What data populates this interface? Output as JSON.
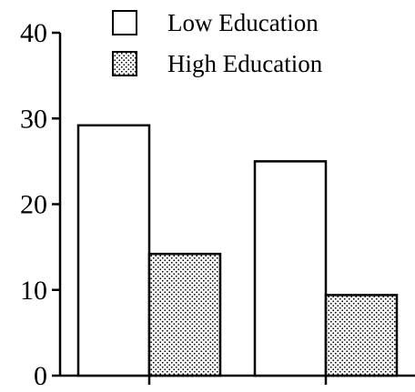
{
  "chart_data": {
    "type": "bar",
    "categories": [
      "",
      ""
    ],
    "series": [
      {
        "name": "Low Education",
        "values": [
          29.2,
          25.0
        ],
        "fill": "none"
      },
      {
        "name": "High Education",
        "values": [
          14.2,
          9.4
        ],
        "fill": "dotted"
      }
    ],
    "ylim": [
      0,
      40
    ],
    "yticks": [
      "0",
      "10",
      "20",
      "30",
      "40"
    ],
    "xlabel": "",
    "ylabel": "",
    "title": "",
    "grid": false,
    "legend_position": "top"
  }
}
